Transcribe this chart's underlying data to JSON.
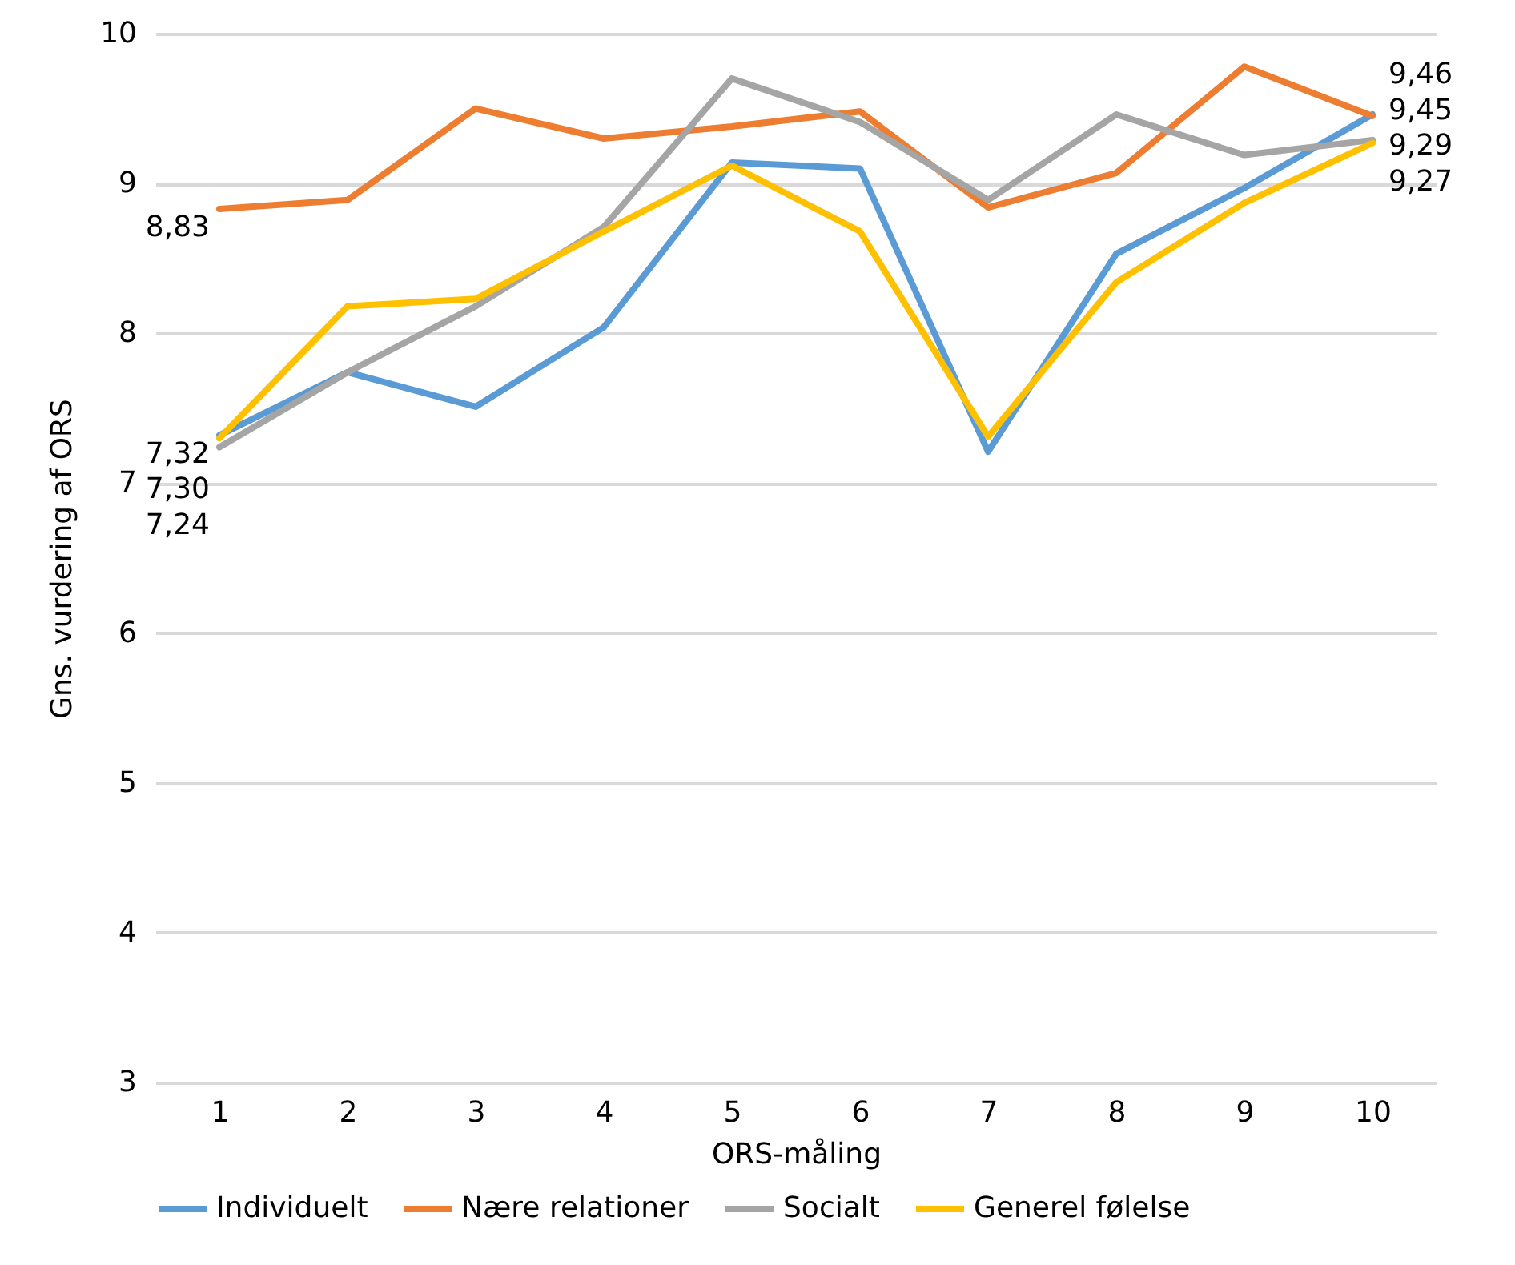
{
  "chart_data": {
    "type": "line",
    "xlabel": "ORS-måling",
    "ylabel": "Gns. vurdering af ORS",
    "categories": [
      "1",
      "2",
      "3",
      "4",
      "5",
      "6",
      "7",
      "8",
      "9",
      "10"
    ],
    "ylim": [
      3,
      10
    ],
    "yticks": [
      3,
      4,
      5,
      6,
      7,
      8,
      9,
      10
    ],
    "grid": "y",
    "legend": "bottom",
    "series": [
      {
        "name": "Individuelt",
        "color": "#5b9bd5",
        "values": [
          7.32,
          7.74,
          7.51,
          8.04,
          9.14,
          9.1,
          7.21,
          8.53,
          8.97,
          9.46
        ],
        "value_labels": [
          "7,32",
          null,
          null,
          null,
          null,
          null,
          null,
          null,
          null,
          "9,46"
        ]
      },
      {
        "name": "Nære relationer",
        "color": "#ed7d31",
        "values": [
          8.83,
          8.89,
          9.5,
          9.3,
          9.38,
          9.48,
          8.84,
          9.07,
          9.78,
          9.45
        ],
        "value_labels": [
          "8,83",
          null,
          null,
          null,
          null,
          null,
          null,
          null,
          null,
          "9,45"
        ]
      },
      {
        "name": "Socialt",
        "color": "#a5a5a5",
        "values": [
          7.24,
          7.74,
          8.18,
          8.71,
          9.7,
          9.41,
          8.89,
          9.46,
          9.19,
          9.29
        ],
        "value_labels": [
          "7,24",
          null,
          null,
          null,
          null,
          null,
          null,
          null,
          null,
          "9,29"
        ]
      },
      {
        "name": "Generel følelse",
        "color": "#ffc000",
        "values": [
          7.3,
          8.18,
          8.23,
          8.68,
          9.12,
          8.68,
          7.31,
          8.34,
          8.87,
          9.27
        ],
        "value_labels": [
          "7,30",
          null,
          null,
          null,
          null,
          null,
          null,
          null,
          null,
          "9,27"
        ]
      }
    ]
  }
}
